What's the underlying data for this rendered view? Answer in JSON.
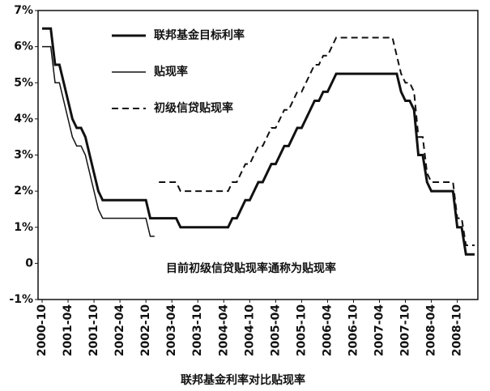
{
  "chart_data": {
    "type": "line",
    "title": "联邦基金利率对比贴现率",
    "annotation": "目前初级信贷贴现率通称为贴现率",
    "categories": [
      "2000-10",
      null,
      null,
      null,
      null,
      null,
      "2001-04",
      null,
      null,
      null,
      null,
      null,
      "2001-10",
      null,
      null,
      null,
      null,
      null,
      "2002-04",
      null,
      null,
      null,
      null,
      null,
      "2002-10",
      null,
      null,
      null,
      null,
      null,
      "2003-04",
      null,
      null,
      null,
      null,
      null,
      "2003-10",
      null,
      null,
      null,
      null,
      null,
      "2004-04",
      null,
      null,
      null,
      null,
      null,
      "2004-10",
      null,
      null,
      null,
      null,
      null,
      "2005-04",
      null,
      null,
      null,
      null,
      null,
      "2005-10",
      null,
      null,
      null,
      null,
      null,
      "2006-04",
      null,
      null,
      null,
      null,
      null,
      "2006-10",
      null,
      null,
      null,
      null,
      null,
      "2007-04",
      null,
      null,
      null,
      null,
      null,
      "2007-10",
      null,
      null,
      null,
      null,
      null,
      "2008-04",
      null,
      null,
      null,
      null,
      null,
      "2008-10",
      null,
      null,
      null,
      null
    ],
    "series": [
      {
        "name": "联邦基金目标利率",
        "color": "#111111",
        "style": "solid",
        "width": 3,
        "values": [
          6.5,
          6.5,
          6.5,
          5.5,
          5.5,
          5.0,
          4.5,
          4.0,
          3.75,
          3.75,
          3.5,
          3.0,
          2.5,
          2.0,
          1.75,
          1.75,
          1.75,
          1.75,
          1.75,
          1.75,
          1.75,
          1.75,
          1.75,
          1.75,
          1.75,
          1.25,
          1.25,
          1.25,
          1.25,
          1.25,
          1.25,
          1.25,
          1.0,
          1.0,
          1.0,
          1.0,
          1.0,
          1.0,
          1.0,
          1.0,
          1.0,
          1.0,
          1.0,
          1.0,
          1.25,
          1.25,
          1.5,
          1.75,
          1.75,
          2.0,
          2.25,
          2.25,
          2.5,
          2.75,
          2.75,
          3.0,
          3.25,
          3.25,
          3.5,
          3.75,
          3.75,
          4.0,
          4.25,
          4.5,
          4.5,
          4.75,
          4.75,
          5.0,
          5.25,
          5.25,
          5.25,
          5.25,
          5.25,
          5.25,
          5.25,
          5.25,
          5.25,
          5.25,
          5.25,
          5.25,
          5.25,
          5.25,
          5.25,
          4.75,
          4.5,
          4.5,
          4.25,
          3.0,
          3.0,
          2.25,
          2.0,
          2.0,
          2.0,
          2.0,
          2.0,
          2.0,
          1.0,
          1.0,
          0.25,
          0.25,
          0.25
        ]
      },
      {
        "name": "贴现率",
        "color": "#111111",
        "style": "solid",
        "width": 1.5,
        "values": [
          6.0,
          6.0,
          6.0,
          5.0,
          5.0,
          4.5,
          4.0,
          3.5,
          3.25,
          3.25,
          3.0,
          2.5,
          2.0,
          1.5,
          1.25,
          1.25,
          1.25,
          1.25,
          1.25,
          1.25,
          1.25,
          1.25,
          1.25,
          1.25,
          1.25,
          0.75,
          0.75,
          null,
          null,
          null,
          null,
          null,
          null,
          null,
          null,
          null,
          null,
          null,
          null,
          null,
          null,
          null,
          null,
          null,
          null,
          null,
          null,
          null,
          null,
          null,
          null,
          null,
          null,
          null,
          null,
          null,
          null,
          null,
          null,
          null,
          null,
          null,
          null,
          null,
          null,
          null,
          null,
          null,
          null,
          null,
          null,
          null,
          null,
          null,
          null,
          null,
          null,
          null,
          null,
          null,
          null,
          null,
          null,
          null,
          null,
          null,
          null,
          null,
          null,
          null,
          null,
          null,
          null,
          null,
          null,
          null,
          null,
          null,
          null,
          null,
          null
        ]
      },
      {
        "name": "初级信贷贴现率",
        "color": "#111111",
        "style": "dashed",
        "width": 2,
        "values": [
          null,
          null,
          null,
          null,
          null,
          null,
          null,
          null,
          null,
          null,
          null,
          null,
          null,
          null,
          null,
          null,
          null,
          null,
          null,
          null,
          null,
          null,
          null,
          null,
          null,
          null,
          null,
          2.25,
          2.25,
          2.25,
          2.25,
          2.25,
          2.0,
          2.0,
          2.0,
          2.0,
          2.0,
          2.0,
          2.0,
          2.0,
          2.0,
          2.0,
          2.0,
          2.0,
          2.25,
          2.25,
          2.5,
          2.75,
          2.75,
          3.0,
          3.25,
          3.25,
          3.5,
          3.75,
          3.75,
          4.0,
          4.25,
          4.25,
          4.5,
          4.75,
          4.75,
          5.0,
          5.25,
          5.5,
          5.5,
          5.75,
          5.75,
          6.0,
          6.25,
          6.25,
          6.25,
          6.25,
          6.25,
          6.25,
          6.25,
          6.25,
          6.25,
          6.25,
          6.25,
          6.25,
          6.25,
          6.25,
          5.75,
          5.25,
          5.0,
          5.0,
          4.75,
          3.5,
          3.5,
          2.5,
          2.25,
          2.25,
          2.25,
          2.25,
          2.25,
          2.25,
          1.25,
          1.25,
          0.5,
          0.5,
          0.5
        ]
      }
    ],
    "ylim": [
      -1,
      7
    ],
    "yticks": [
      {
        "value": -1,
        "label": "-1%"
      },
      0,
      {
        "value": 1,
        "label": "1%"
      },
      {
        "value": 2,
        "label": "2%"
      },
      {
        "value": 3,
        "label": "3%"
      },
      {
        "value": 4,
        "label": "4%"
      },
      {
        "value": 5,
        "label": "5%"
      },
      {
        "value": 6,
        "label": "6%"
      },
      {
        "value": 7,
        "label": "7%"
      }
    ],
    "grid": false
  }
}
